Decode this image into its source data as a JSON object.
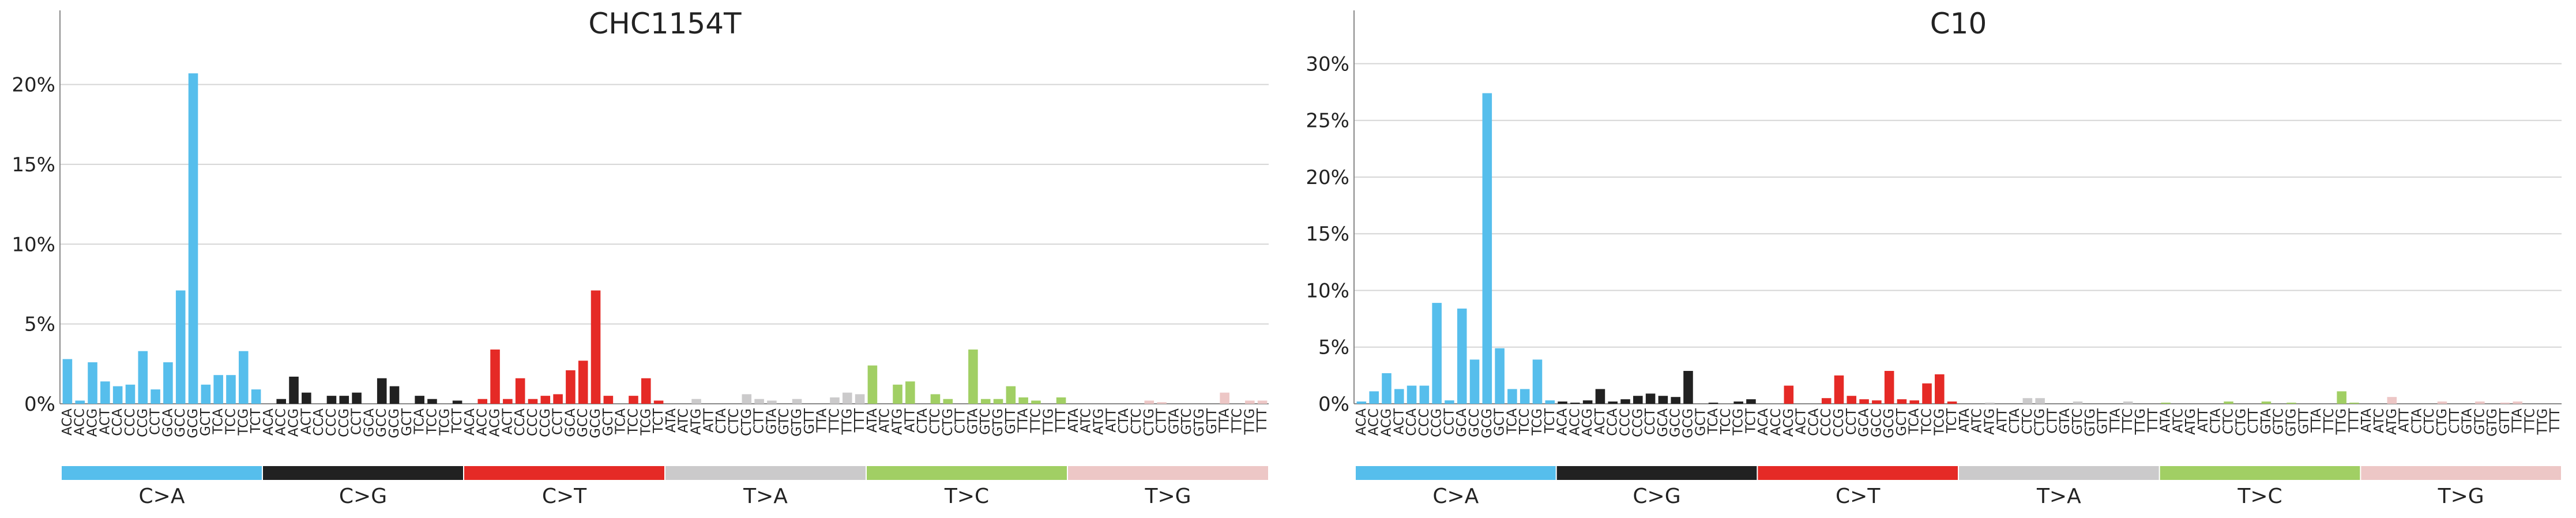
{
  "chart_data": [
    {
      "type": "bar",
      "title": "CHC1154T",
      "xlabel": "",
      "ylabel": "",
      "ylim": [
        0,
        0.245
      ],
      "yticks": [
        0,
        0.05,
        0.1,
        0.15,
        0.2
      ],
      "ytick_labels": [
        "0%",
        "5%",
        "10%",
        "15%",
        "20%"
      ],
      "grid": "horizontal",
      "groups": [
        {
          "name": "C>A",
          "color": "#56BEEC"
        },
        {
          "name": "C>G",
          "color": "#212121"
        },
        {
          "name": "C>T",
          "color": "#E52A26"
        },
        {
          "name": "T>A",
          "color": "#CBCACB"
        },
        {
          "name": "T>C",
          "color": "#A1CF64"
        },
        {
          "name": "T>G",
          "color": "#EDC7C6"
        }
      ],
      "categories": [
        "ACA",
        "ACC",
        "ACG",
        "ACT",
        "CCA",
        "CCC",
        "CCG",
        "CCT",
        "GCA",
        "GCC",
        "GCG",
        "GCT",
        "TCA",
        "TCC",
        "TCG",
        "TCT",
        "ACA",
        "ACC",
        "ACG",
        "ACT",
        "CCA",
        "CCC",
        "CCG",
        "CCT",
        "GCA",
        "GCC",
        "GCG",
        "GCT",
        "TCA",
        "TCC",
        "TCG",
        "TCT",
        "ACA",
        "ACC",
        "ACG",
        "ACT",
        "CCA",
        "CCC",
        "CCG",
        "CCT",
        "GCA",
        "GCC",
        "GCG",
        "GCT",
        "TCA",
        "TCC",
        "TCG",
        "TCT",
        "ATA",
        "ATC",
        "ATG",
        "ATT",
        "CTA",
        "CTC",
        "CTG",
        "CTT",
        "GTA",
        "GTC",
        "GTG",
        "GTT",
        "TTA",
        "TTC",
        "TTG",
        "TTT",
        "ATA",
        "ATC",
        "ATG",
        "ATT",
        "CTA",
        "CTC",
        "CTG",
        "CTT",
        "GTA",
        "GTC",
        "GTG",
        "GTT",
        "TTA",
        "TTC",
        "TTG",
        "TTT",
        "ATA",
        "ATC",
        "ATG",
        "ATT",
        "CTA",
        "CTC",
        "CTG",
        "CTT",
        "GTA",
        "GTC",
        "GTG",
        "GTT",
        "TTA",
        "TTC",
        "TTG",
        "TTT"
      ],
      "values": [
        0.028,
        0.002,
        0.026,
        0.014,
        0.011,
        0.012,
        0.033,
        0.009,
        0.026,
        0.071,
        0.207,
        0.012,
        0.018,
        0.018,
        0.033,
        0.009,
        0.0,
        0.003,
        0.017,
        0.007,
        0.0,
        0.005,
        0.005,
        0.007,
        0.0,
        0.016,
        0.011,
        0.0,
        0.005,
        0.003,
        0.0,
        0.002,
        0.0,
        0.003,
        0.034,
        0.003,
        0.016,
        0.003,
        0.005,
        0.006,
        0.021,
        0.027,
        0.071,
        0.005,
        0.0,
        0.005,
        0.016,
        0.002,
        0.0,
        0.0,
        0.003,
        0.0,
        0.0,
        0.0,
        0.006,
        0.003,
        0.002,
        0.0,
        0.003,
        0.0,
        0.0,
        0.004,
        0.007,
        0.006,
        0.024,
        0.0,
        0.012,
        0.014,
        0.0,
        0.006,
        0.003,
        0.0,
        0.034,
        0.003,
        0.003,
        0.011,
        0.004,
        0.002,
        0.0,
        0.004,
        0.0,
        0.0,
        0.0,
        0.0,
        0.0,
        0.0,
        0.002,
        0.001,
        0.0,
        0.0,
        0.0,
        0.0,
        0.007,
        0.0,
        0.002,
        0.002
      ]
    },
    {
      "type": "bar",
      "title": "C10",
      "xlabel": "",
      "ylabel": "",
      "ylim": [
        0,
        0.345
      ],
      "yticks": [
        0,
        0.05,
        0.1,
        0.15,
        0.2,
        0.25,
        0.3
      ],
      "ytick_labels": [
        "0%",
        "5%",
        "10%",
        "15%",
        "20%",
        "25%",
        "30%"
      ],
      "grid": "horizontal",
      "groups": [
        {
          "name": "C>A",
          "color": "#56BEEC"
        },
        {
          "name": "C>G",
          "color": "#212121"
        },
        {
          "name": "C>T",
          "color": "#E52A26"
        },
        {
          "name": "T>A",
          "color": "#CBCACB"
        },
        {
          "name": "T>C",
          "color": "#A1CF64"
        },
        {
          "name": "T>G",
          "color": "#EDC7C6"
        }
      ],
      "categories": [
        "ACA",
        "ACC",
        "ACG",
        "ACT",
        "CCA",
        "CCC",
        "CCG",
        "CCT",
        "GCA",
        "GCC",
        "GCG",
        "GCT",
        "TCA",
        "TCC",
        "TCG",
        "TCT",
        "ACA",
        "ACC",
        "ACG",
        "ACT",
        "CCA",
        "CCC",
        "CCG",
        "CCT",
        "GCA",
        "GCC",
        "GCG",
        "GCT",
        "TCA",
        "TCC",
        "TCG",
        "TCT",
        "ACA",
        "ACC",
        "ACG",
        "ACT",
        "CCA",
        "CCC",
        "CCG",
        "CCT",
        "GCA",
        "GCC",
        "GCG",
        "GCT",
        "TCA",
        "TCC",
        "TCG",
        "TCT",
        "ATA",
        "ATC",
        "ATG",
        "ATT",
        "CTA",
        "CTC",
        "CTG",
        "CTT",
        "GTA",
        "GTC",
        "GTG",
        "GTT",
        "TTA",
        "TTC",
        "TTG",
        "TTT",
        "ATA",
        "ATC",
        "ATG",
        "ATT",
        "CTA",
        "CTC",
        "CTG",
        "CTT",
        "GTA",
        "GTC",
        "GTG",
        "GTT",
        "TTA",
        "TTC",
        "TTG",
        "TTT",
        "ATA",
        "ATC",
        "ATG",
        "ATT",
        "CTA",
        "CTC",
        "CTG",
        "CTT",
        "GTA",
        "GTC",
        "GTG",
        "GTT",
        "TTA",
        "TTC",
        "TTG",
        "TTT"
      ],
      "values": [
        0.002,
        0.011,
        0.027,
        0.013,
        0.016,
        0.016,
        0.089,
        0.003,
        0.084,
        0.039,
        0.274,
        0.049,
        0.013,
        0.013,
        0.039,
        0.003,
        0.002,
        0.001,
        0.003,
        0.013,
        0.002,
        0.004,
        0.007,
        0.009,
        0.007,
        0.006,
        0.029,
        0.0,
        0.001,
        0.0,
        0.002,
        0.004,
        0.0,
        0.0,
        0.016,
        0.0,
        0.0,
        0.005,
        0.025,
        0.007,
        0.004,
        0.003,
        0.029,
        0.004,
        0.003,
        0.018,
        0.026,
        0.002,
        0.0,
        0.0,
        0.001,
        0.0,
        0.0,
        0.005,
        0.005,
        0.0,
        0.0,
        0.002,
        0.0,
        0.0,
        0.0,
        0.002,
        0.0,
        0.0,
        0.001,
        0.0,
        0.0,
        0.0,
        0.0,
        0.002,
        0.0,
        0.0,
        0.002,
        0.0,
        0.001,
        0.0,
        0.0,
        0.0,
        0.011,
        0.001,
        0.0,
        0.0,
        0.006,
        0.0,
        0.0,
        0.0,
        0.002,
        0.0,
        0.0,
        0.002,
        0.0,
        0.001,
        0.002,
        0.0,
        0.0,
        0.0
      ]
    }
  ]
}
